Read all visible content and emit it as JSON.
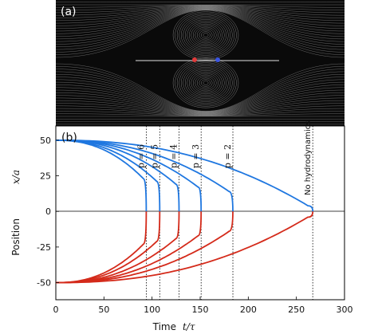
{
  "panel_a": {
    "label": "(a)",
    "background": "#0a0a0a",
    "stream_color": "#d8d8d8",
    "particles": [
      {
        "name": "red-particle",
        "color": "#e23b3b"
      },
      {
        "name": "blue-particle",
        "color": "#3b55e2"
      }
    ]
  },
  "chart_data": {
    "type": "line",
    "panel_label": "(b)",
    "xlabel": "Time",
    "xlabel_math": "t/τ",
    "ylabel": "Position",
    "ylabel_math": "x/a",
    "xlim": [
      0,
      300
    ],
    "ylim": [
      -62,
      60
    ],
    "xticks": [
      0,
      50,
      100,
      150,
      200,
      250,
      300
    ],
    "yticks": [
      -50,
      -25,
      0,
      25,
      50
    ],
    "grid": false,
    "upper_color": "#1f77e0",
    "lower_color": "#d42a1a",
    "vline_style": "dotted",
    "series": [
      {
        "label": "p = 6",
        "x_end": 91,
        "merge_y": 23,
        "vx": 94
      },
      {
        "label": "p = 5",
        "x_end": 105,
        "merge_y": 21,
        "vx": 108
      },
      {
        "label": "p = 4",
        "x_end": 125,
        "merge_y": 19,
        "vx": 128
      },
      {
        "label": "p = 3",
        "x_end": 148,
        "merge_y": 17,
        "vx": 151
      },
      {
        "label": "p = 2",
        "x_end": 180,
        "merge_y": 14,
        "vx": 184
      },
      {
        "label": "No hydrodynamics",
        "x_end": 262,
        "merge_y": 4,
        "vx": 267
      }
    ],
    "start_upper": 50,
    "start_lower": -50
  }
}
